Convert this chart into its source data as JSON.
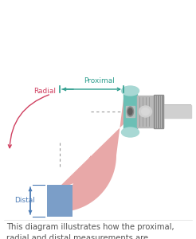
{
  "bg_color": "#ffffff",
  "tube_pink": "#E8A8A8",
  "tube_blue": "#7B9EC8",
  "tube_teal": "#6BBFB5",
  "tube_teal_light": "#A8D8D4",
  "connector_gray": "#B8B8B8",
  "connector_dark": "#909090",
  "connector_light": "#D0D0D0",
  "label_proximal_color": "#2E9E8E",
  "label_radial_color": "#D04060",
  "label_distal_color": "#4A7AB5",
  "arrow_proximal_color": "#2E9E8E",
  "arrow_radial_color": "#D04060",
  "arrow_distal_color": "#4A7AB5",
  "dash_color": "#999999",
  "caption_color": "#555555",
  "caption_fontsize": 7.2,
  "caption": "This diagram illustrates how the proximal,\nradial and distal measurements are\ndetermined for proper sizing."
}
